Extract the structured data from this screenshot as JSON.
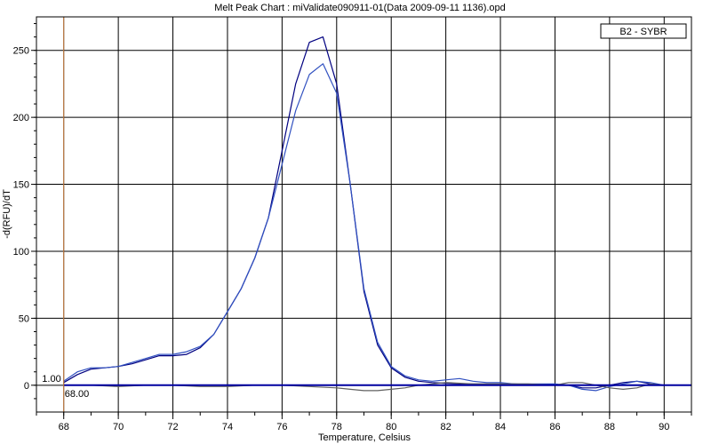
{
  "chart_data": {
    "type": "line",
    "title": "Melt Peak Chart : miValidate090911-01(Data 2009-09-11 1136).opd",
    "xlabel": "Temperature, Celsius",
    "ylabel": "-d(RFU)/dT",
    "xlim": [
      67,
      91
    ],
    "ylim": [
      -20,
      275
    ],
    "x_ticks": [
      68,
      70,
      72,
      74,
      76,
      78,
      80,
      82,
      84,
      86,
      88,
      90
    ],
    "y_ticks": [
      0,
      50,
      100,
      150,
      200,
      250
    ],
    "grid": true,
    "legend": {
      "position": "top-right",
      "entries": [
        "B2 - SYBR"
      ]
    },
    "cursor": {
      "x": 68.0,
      "x_label": "68.00",
      "y_label": "1.00",
      "color": "#d08040"
    },
    "series": [
      {
        "color": "#000080",
        "x": [
          68,
          68.5,
          69,
          69.5,
          70,
          70.5,
          71,
          71.5,
          72,
          72.5,
          73,
          73.5,
          74,
          74.5,
          75,
          75.5,
          76,
          76.5,
          77,
          77.5,
          78,
          78.5,
          79,
          79.5,
          80,
          80.5,
          81,
          81.5,
          82,
          82.5,
          83,
          83.5,
          84,
          84.5,
          85,
          85.5,
          86,
          86.5,
          87,
          87.5,
          88,
          88.5,
          89,
          89.5,
          90
        ],
        "y": [
          2,
          8,
          12,
          13,
          14,
          16,
          19,
          22,
          22,
          23,
          28,
          38,
          55,
          72,
          95,
          125,
          175,
          225,
          256,
          260,
          225,
          150,
          70,
          30,
          13,
          6,
          3,
          2,
          1.5,
          1,
          1,
          1,
          1,
          1,
          0.5,
          0.5,
          0.5,
          0,
          -2,
          -2,
          0,
          2,
          3,
          1,
          0
        ]
      },
      {
        "color": "#3050c0",
        "x": [
          68,
          68.5,
          69,
          69.5,
          70,
          70.5,
          71,
          71.5,
          72,
          72.5,
          73,
          73.5,
          74,
          74.5,
          75,
          75.5,
          76,
          76.5,
          77,
          77.5,
          78,
          78.5,
          79,
          79.5,
          80,
          80.5,
          81,
          81.5,
          82,
          82.5,
          83,
          83.5,
          84,
          84.5,
          85,
          85.5,
          86,
          86.5,
          87,
          87.5,
          88,
          88.5,
          89,
          89.5,
          90
        ],
        "y": [
          3,
          10,
          13,
          13,
          14,
          17,
          20,
          23,
          23,
          25,
          29,
          38,
          55,
          72,
          95,
          125,
          165,
          205,
          232,
          240,
          218,
          150,
          72,
          32,
          14,
          7,
          4,
          3,
          4,
          5,
          3,
          2,
          2,
          1,
          1,
          1,
          1,
          0,
          -3,
          -4,
          -1,
          1,
          3,
          2,
          0
        ]
      },
      {
        "color": "#606060",
        "x": [
          68,
          69,
          70,
          71,
          72,
          73,
          74,
          75,
          76,
          77,
          78,
          78.5,
          79,
          79.5,
          80,
          80.5,
          81,
          81.5,
          82,
          83,
          84,
          85,
          86,
          86.5,
          87,
          87.5,
          88,
          88.5,
          89,
          89.5,
          90
        ],
        "y": [
          0,
          0,
          -1,
          0,
          0,
          -1,
          -1,
          0,
          0,
          -1,
          -2,
          -3,
          -4,
          -4,
          -3,
          -2,
          0,
          1,
          2,
          1,
          1,
          1,
          0,
          2,
          2,
          0,
          -2,
          -3,
          -2,
          1,
          0
        ]
      },
      {
        "color": "#0000a0",
        "x": [
          68,
          70,
          72,
          74,
          76,
          78,
          80,
          82,
          84,
          86,
          88,
          90,
          91
        ],
        "y": [
          0,
          0,
          0,
          0,
          0,
          0,
          0,
          0,
          0,
          0,
          0,
          0,
          0
        ]
      }
    ]
  }
}
